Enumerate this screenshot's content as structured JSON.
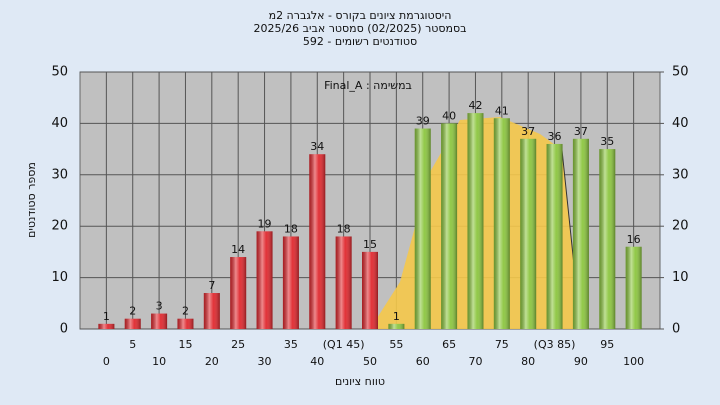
{
  "chart_data": {
    "type": "bar",
    "title": [
      "היסטוגרמת ציונים בקורס - אלגברה 2מ",
      "בסמסטר  (02/2025)  סמסטר אביב 2025/26",
      "592 - סטודנטים רשומים"
    ],
    "annotation": "Final_A : במשימה",
    "x_label": "טווח ציונים",
    "y_label": "מספר סטודנטים",
    "categories": [
      "0",
      "5",
      "10",
      "15",
      "20",
      "25",
      "30",
      "35",
      "40",
      "(Q1 45)",
      "50",
      "55",
      "60",
      "65",
      "70",
      "75",
      "80",
      "(Q3 85)",
      "90",
      "95",
      "100"
    ],
    "values": [
      1,
      2,
      3,
      2,
      7,
      14,
      19,
      18,
      34,
      18,
      15,
      1,
      39,
      40,
      42,
      41,
      37,
      36,
      37,
      35,
      16
    ],
    "colors": [
      "#e0282e",
      "#e0282e",
      "#e0282e",
      "#e0282e",
      "#e0282e",
      "#e0282e",
      "#e0282e",
      "#e0282e",
      "#e0282e",
      "#e0282e",
      "#e0282e",
      "#8cc63f",
      "#8cc63f",
      "#8cc63f",
      "#8cc63f",
      "#8cc63f",
      "#8cc63f",
      "#8cc63f",
      "#8cc63f",
      "#8cc63f",
      "#8cc63f"
    ],
    "ylim": [
      0,
      50
    ],
    "yticks": [
      0,
      10,
      20,
      30,
      40,
      50
    ],
    "y2lim": [
      0,
      50
    ],
    "y2ticks": [
      0,
      10,
      20,
      30,
      40,
      50
    ],
    "grid": true
  }
}
